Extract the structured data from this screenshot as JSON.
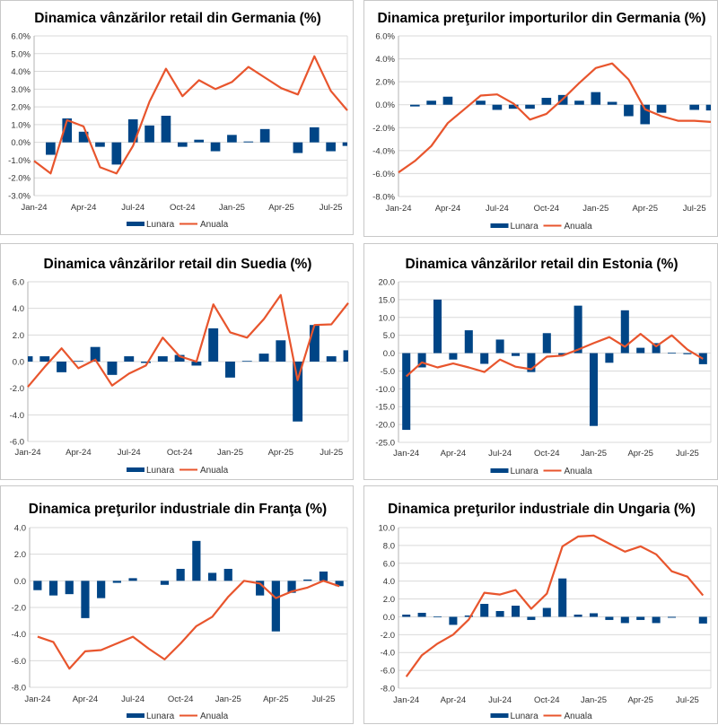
{
  "legend": {
    "monthly": "Lunara",
    "annual": "Anuala"
  },
  "colors": {
    "bar": "#004586",
    "line": "#e8552d",
    "grid": "#d9d9d9",
    "axis": "#b3b3b3"
  },
  "chart_data": [
    {
      "type": "bar+line",
      "title": "Dinamica vânzărilor retail din Germania (%)",
      "xlabel": "",
      "ylabel": "",
      "ylim": [
        -3,
        6
      ],
      "ystep": 1,
      "ydecimals": 1,
      "ysuffix": "%",
      "grid": true,
      "legend_position": "bottom",
      "categories": [
        "Jan-24",
        "Feb-24",
        "Mar-24",
        "Apr-24",
        "May-24",
        "Jun-24",
        "Jul-24",
        "Aug-24",
        "Sep-24",
        "Oct-24",
        "Nov-24",
        "Dec-24",
        "Jan-25",
        "Feb-25",
        "Mar-25",
        "Apr-25",
        "May-25",
        "Jun-25",
        "Jul-25",
        "Aug-25"
      ],
      "tick_labels": [
        "Jan-24",
        "Apr-24",
        "Jul-24",
        "Oct-24",
        "Jan-25",
        "Apr-25",
        "Jul-25"
      ],
      "series": [
        {
          "name": "Lunara",
          "kind": "bar",
          "values": [
            0,
            -0.7,
            1.35,
            0.6,
            -0.25,
            -1.25,
            1.3,
            0.95,
            1.5,
            -0.25,
            0.15,
            -0.5,
            0.42,
            0.05,
            0.75,
            0,
            -0.6,
            0.85,
            -0.5,
            -0.2
          ]
        },
        {
          "name": "Anuala",
          "kind": "line",
          "values": [
            -1.05,
            -1.75,
            1.25,
            0.9,
            -1.4,
            -1.75,
            -0.2,
            2.3,
            4.15,
            2.6,
            3.5,
            3.0,
            3.4,
            4.25,
            3.65,
            3.05,
            2.7,
            4.85,
            2.9,
            1.8
          ]
        }
      ]
    },
    {
      "type": "bar+line",
      "title": "Dinamica preţurilor importurilor din Germania (%)",
      "xlabel": "",
      "ylabel": "",
      "ylim": [
        -8,
        6
      ],
      "ystep": 2,
      "ydecimals": 1,
      "ysuffix": "%",
      "grid": true,
      "legend_position": "bottom",
      "categories": [
        "Jan-24",
        "Feb-24",
        "Mar-24",
        "Apr-24",
        "May-24",
        "Jun-24",
        "Jul-24",
        "Aug-24",
        "Sep-24",
        "Oct-24",
        "Nov-24",
        "Dec-24",
        "Jan-25",
        "Feb-25",
        "Mar-25",
        "Apr-25",
        "May-25",
        "Jun-25",
        "Jul-25",
        "Aug-25"
      ],
      "tick_labels": [
        "Jan-24",
        "Apr-24",
        "Jul-24",
        "Oct-24",
        "Jan-25",
        "Apr-25",
        "Jul-25"
      ],
      "series": [
        {
          "name": "Lunara",
          "kind": "bar",
          "values": [
            0,
            -0.15,
            0.35,
            0.7,
            0,
            0.35,
            -0.45,
            -0.35,
            -0.35,
            0.6,
            0.85,
            0.35,
            1.1,
            0.25,
            -1.0,
            -1.7,
            -0.7,
            0,
            -0.45,
            -0.5
          ]
        },
        {
          "name": "Anuala",
          "kind": "line",
          "values": [
            -5.9,
            -4.9,
            -3.6,
            -1.6,
            -0.4,
            0.8,
            0.9,
            0.1,
            -1.3,
            -0.8,
            0.5,
            1.9,
            3.2,
            3.6,
            2.2,
            -0.4,
            -1.0,
            -1.4,
            -1.4,
            -1.5
          ]
        }
      ]
    },
    {
      "type": "bar+line",
      "title": "Dinamica vânzărilor retail din Suedia (%)",
      "xlabel": "",
      "ylabel": "",
      "ylim": [
        -6,
        6
      ],
      "ystep": 2,
      "ydecimals": 1,
      "ysuffix": "",
      "grid": true,
      "legend_position": "bottom",
      "categories": [
        "Jan-24",
        "Feb-24",
        "Mar-24",
        "Apr-24",
        "May-24",
        "Jun-24",
        "Jul-24",
        "Aug-24",
        "Sep-24",
        "Oct-24",
        "Nov-24",
        "Dec-24",
        "Jan-25",
        "Feb-25",
        "Mar-25",
        "Apr-25",
        "May-25",
        "Jun-25",
        "Jul-25",
        "Aug-25"
      ],
      "tick_labels": [
        "Jan-24",
        "Apr-24",
        "Jul-24",
        "Oct-24",
        "Jan-25",
        "Apr-25",
        "Jul-25"
      ],
      "series": [
        {
          "name": "Lunara",
          "kind": "bar",
          "values": [
            0.4,
            0.4,
            -0.8,
            0.05,
            1.1,
            -1.0,
            0.4,
            -0.1,
            0.4,
            0.5,
            -0.3,
            2.5,
            -1.2,
            0.05,
            0.6,
            1.6,
            -4.5,
            2.75,
            0.4,
            0.85
          ]
        },
        {
          "name": "Anuala",
          "kind": "line",
          "values": [
            -1.9,
            -0.4,
            1.0,
            -0.5,
            0.15,
            -1.8,
            -0.9,
            -0.3,
            1.8,
            0.4,
            0.0,
            4.3,
            2.2,
            1.8,
            3.2,
            5.0,
            -1.4,
            2.75,
            2.8,
            4.4
          ]
        }
      ]
    },
    {
      "type": "bar+line",
      "title": "Dinamica vânzărilor retail din Estonia (%)",
      "xlabel": "",
      "ylabel": "",
      "ylim": [
        -25,
        20
      ],
      "ystep": 5,
      "ydecimals": 1,
      "ysuffix": "",
      "grid": true,
      "legend_position": "bottom",
      "categories": [
        "Jan-24",
        "Feb-24",
        "Mar-24",
        "Apr-24",
        "May-24",
        "Jun-24",
        "Jul-24",
        "Aug-24",
        "Sep-24",
        "Oct-24",
        "Nov-24",
        "Dec-24",
        "Jan-25",
        "Feb-25",
        "Mar-25",
        "Apr-25",
        "May-25",
        "Jun-25",
        "Jul-25",
        "Aug-25"
      ],
      "tick_labels": [
        "Jan-24",
        "Apr-24",
        "Jul-24",
        "Oct-24",
        "Jan-25",
        "Apr-25",
        "Jul-25"
      ],
      "series": [
        {
          "name": "Lunara",
          "kind": "bar",
          "values": [
            -21.5,
            -4.0,
            15.0,
            -1.8,
            6.4,
            -3.0,
            3.8,
            -0.8,
            -5.3,
            5.6,
            -0.5,
            13.3,
            -20.4,
            -2.7,
            12.0,
            1.5,
            2.8,
            0.1,
            -0.3,
            -3.1
          ]
        },
        {
          "name": "Anuala",
          "kind": "line",
          "values": [
            -6.5,
            -2.6,
            -4.0,
            -2.9,
            -4.0,
            -5.3,
            -1.8,
            -3.8,
            -4.5,
            -1.0,
            -0.7,
            1.0,
            2.8,
            4.5,
            1.8,
            5.4,
            1.9,
            5.0,
            1.0,
            -1.6
          ]
        }
      ]
    },
    {
      "type": "bar+line",
      "title": "Dinamica preţurilor industriale din Franţa (%)",
      "xlabel": "",
      "ylabel": "",
      "ylim": [
        -8,
        4
      ],
      "ystep": 2,
      "ydecimals": 1,
      "ysuffix": "",
      "grid": true,
      "legend_position": "bottom",
      "categories": [
        "Jan-24",
        "Feb-24",
        "Mar-24",
        "Apr-24",
        "May-24",
        "Jun-24",
        "Jul-24",
        "Aug-24",
        "Sep-24",
        "Oct-24",
        "Nov-24",
        "Dec-24",
        "Jan-25",
        "Feb-25",
        "Mar-25",
        "Apr-25",
        "May-25",
        "Jun-25",
        "Jul-25",
        "Aug-25"
      ],
      "tick_labels": [
        "Jan-24",
        "Apr-24",
        "Jul-24",
        "Oct-24",
        "Jan-25",
        "Apr-25",
        "Jul-25"
      ],
      "series": [
        {
          "name": "Lunara",
          "kind": "bar",
          "values": [
            -0.7,
            -1.1,
            -1.0,
            -2.8,
            -1.3,
            -0.15,
            0.2,
            0,
            -0.3,
            0.9,
            3.0,
            0.6,
            0.9,
            0,
            -1.1,
            -3.8,
            -0.9,
            0.1,
            0.7,
            -0.4
          ]
        },
        {
          "name": "Anuala",
          "kind": "line",
          "values": [
            -4.2,
            -4.6,
            -6.6,
            -5.3,
            -5.2,
            -4.7,
            -4.2,
            -5.1,
            -5.9,
            -4.7,
            -3.4,
            -2.7,
            -1.2,
            0.0,
            -0.2,
            -1.3,
            -0.8,
            -0.5,
            0.0,
            -0.4
          ]
        }
      ]
    },
    {
      "type": "bar+line",
      "title": "Dinamica preţurilor industriale din Ungaria (%)",
      "xlabel": "",
      "ylabel": "",
      "ylim": [
        -8,
        10
      ],
      "ystep": 2,
      "ydecimals": 1,
      "ysuffix": "",
      "grid": true,
      "legend_position": "bottom",
      "categories": [
        "Jan-24",
        "Feb-24",
        "Mar-24",
        "Apr-24",
        "May-24",
        "Jun-24",
        "Jul-24",
        "Aug-24",
        "Sep-24",
        "Oct-24",
        "Nov-24",
        "Dec-24",
        "Jan-25",
        "Feb-25",
        "Mar-25",
        "Apr-25",
        "May-25",
        "Jun-25",
        "Jul-25",
        "Aug-25"
      ],
      "tick_labels": [
        "Jan-24",
        "Apr-24",
        "Jul-24",
        "Oct-24",
        "Jan-25",
        "Apr-25",
        "Jul-25"
      ],
      "series": [
        {
          "name": "Lunara",
          "kind": "bar",
          "values": [
            0.25,
            0.45,
            0.05,
            -0.9,
            0.15,
            1.45,
            0.65,
            1.25,
            -0.35,
            1.0,
            4.3,
            0.25,
            0.4,
            -0.35,
            -0.7,
            -0.35,
            -0.7,
            -0.1,
            0,
            -0.75
          ]
        },
        {
          "name": "Anuala",
          "kind": "line",
          "values": [
            -6.7,
            -4.3,
            -3.0,
            -2.0,
            -0.3,
            2.7,
            2.5,
            3.0,
            0.9,
            2.6,
            7.9,
            9.0,
            9.1,
            8.2,
            7.3,
            7.9,
            7.0,
            5.1,
            4.5,
            2.4
          ]
        }
      ]
    }
  ]
}
